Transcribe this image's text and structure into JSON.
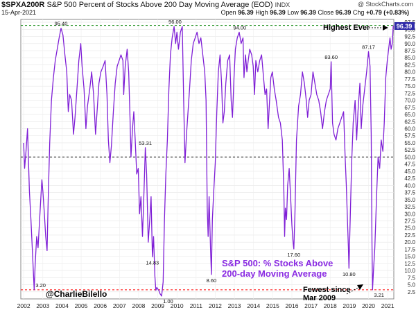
{
  "header": {
    "symbol": "$SPXA200R",
    "description": "S&P 500 Percent of Stocks Above 200 Day Moving Average (EOD)",
    "exchange": "INDX",
    "date": "15-Apr-2021",
    "brand": "@ StockCharts.com",
    "quote": {
      "open_label": "Open",
      "open": "96.39",
      "high_label": "High",
      "high": "96.39",
      "low_label": "Low",
      "low": "96.39",
      "close_label": "Close",
      "close": "96.39",
      "chg_label": "Chg",
      "chg": "+0.79 (+0.83%)"
    }
  },
  "colors": {
    "line": "#7f1fd6",
    "accent_text": "#8a2be2",
    "highest_line": "#008000",
    "lowest_line": "#ff0000",
    "mid_line": "#000000",
    "last_box": "#2e2aa8"
  },
  "chart_data": {
    "type": "line",
    "x_start_year": 2002,
    "series": [
      {
        "values": [
          [
            2002.0,
            55
          ],
          [
            2002.05,
            46
          ],
          [
            2002.12,
            52
          ],
          [
            2002.2,
            60
          ],
          [
            2002.3,
            38
          ],
          [
            2002.38,
            28
          ],
          [
            2002.46,
            16
          ],
          [
            2002.55,
            3.2
          ],
          [
            2002.6,
            12
          ],
          [
            2002.68,
            22
          ],
          [
            2002.75,
            18
          ],
          [
            2002.85,
            30
          ],
          [
            2002.95,
            42
          ],
          [
            2003.0,
            38
          ],
          [
            2003.08,
            30
          ],
          [
            2003.15,
            22
          ],
          [
            2003.22,
            17
          ],
          [
            2003.28,
            35
          ],
          [
            2003.36,
            55
          ],
          [
            2003.45,
            70
          ],
          [
            2003.55,
            78
          ],
          [
            2003.65,
            84
          ],
          [
            2003.75,
            88
          ],
          [
            2003.85,
            92
          ],
          [
            2003.95,
            95.4
          ],
          [
            2004.05,
            93
          ],
          [
            2004.15,
            86
          ],
          [
            2004.25,
            80
          ],
          [
            2004.33,
            66
          ],
          [
            2004.4,
            72
          ],
          [
            2004.5,
            70
          ],
          [
            2004.6,
            58
          ],
          [
            2004.68,
            64
          ],
          [
            2004.78,
            74
          ],
          [
            2004.88,
            84
          ],
          [
            2004.98,
            90
          ],
          [
            2005.05,
            82
          ],
          [
            2005.15,
            74
          ],
          [
            2005.25,
            60
          ],
          [
            2005.33,
            68
          ],
          [
            2005.45,
            74
          ],
          [
            2005.55,
            80
          ],
          [
            2005.65,
            72
          ],
          [
            2005.75,
            58
          ],
          [
            2005.83,
            66
          ],
          [
            2005.93,
            76
          ],
          [
            2006.03,
            80
          ],
          [
            2006.15,
            82
          ],
          [
            2006.25,
            84
          ],
          [
            2006.35,
            72
          ],
          [
            2006.42,
            56
          ],
          [
            2006.5,
            48
          ],
          [
            2006.58,
            54
          ],
          [
            2006.68,
            66
          ],
          [
            2006.78,
            76
          ],
          [
            2006.88,
            82
          ],
          [
            2006.98,
            84
          ],
          [
            2007.08,
            86
          ],
          [
            2007.18,
            84
          ],
          [
            2007.22,
            72
          ],
          [
            2007.3,
            82
          ],
          [
            2007.4,
            88
          ],
          [
            2007.48,
            80
          ],
          [
            2007.55,
            64
          ],
          [
            2007.6,
            50
          ],
          [
            2007.68,
            60
          ],
          [
            2007.75,
            66
          ],
          [
            2007.82,
            56
          ],
          [
            2007.9,
            44
          ],
          [
            2007.98,
            46
          ],
          [
            2008.05,
            30
          ],
          [
            2008.12,
            36
          ],
          [
            2008.2,
            22
          ],
          [
            2008.28,
            38
          ],
          [
            2008.35,
            53.31
          ],
          [
            2008.42,
            44
          ],
          [
            2008.5,
            20
          ],
          [
            2008.58,
            28
          ],
          [
            2008.65,
            36
          ],
          [
            2008.72,
            14.83
          ],
          [
            2008.78,
            22
          ],
          [
            2008.85,
            8
          ],
          [
            2008.9,
            3
          ],
          [
            2008.95,
            4
          ],
          [
            2009.05,
            3
          ],
          [
            2009.12,
            1.8
          ],
          [
            2009.2,
            1.0
          ],
          [
            2009.28,
            6
          ],
          [
            2009.35,
            28
          ],
          [
            2009.42,
            44
          ],
          [
            2009.5,
            56
          ],
          [
            2009.58,
            74
          ],
          [
            2009.66,
            86
          ],
          [
            2009.75,
            92
          ],
          [
            2009.85,
            96
          ],
          [
            2009.93,
            90
          ],
          [
            2010.0,
            94
          ],
          [
            2010.08,
            88
          ],
          [
            2010.18,
            94
          ],
          [
            2010.28,
            96
          ],
          [
            2010.35,
            70
          ],
          [
            2010.42,
            48
          ],
          [
            2010.5,
            58
          ],
          [
            2010.58,
            66
          ],
          [
            2010.66,
            74
          ],
          [
            2010.75,
            84
          ],
          [
            2010.85,
            90
          ],
          [
            2010.95,
            92
          ],
          [
            2011.05,
            94
          ],
          [
            2011.15,
            90
          ],
          [
            2011.25,
            92
          ],
          [
            2011.35,
            86
          ],
          [
            2011.45,
            80
          ],
          [
            2011.52,
            70
          ],
          [
            2011.58,
            32
          ],
          [
            2011.63,
            22
          ],
          [
            2011.68,
            36
          ],
          [
            2011.75,
            18
          ],
          [
            2011.8,
            8.6
          ],
          [
            2011.85,
            28
          ],
          [
            2011.92,
            38
          ],
          [
            2012.0,
            48
          ],
          [
            2012.08,
            66
          ],
          [
            2012.16,
            80
          ],
          [
            2012.25,
            86
          ],
          [
            2012.33,
            76
          ],
          [
            2012.4,
            62
          ],
          [
            2012.47,
            66
          ],
          [
            2012.55,
            76
          ],
          [
            2012.65,
            84
          ],
          [
            2012.75,
            86
          ],
          [
            2012.83,
            70
          ],
          [
            2012.9,
            64
          ],
          [
            2012.98,
            78
          ],
          [
            2013.05,
            88
          ],
          [
            2013.15,
            92
          ],
          [
            2013.25,
            94
          ],
          [
            2013.35,
            90
          ],
          [
            2013.45,
            92
          ],
          [
            2013.5,
            78
          ],
          [
            2013.58,
            86
          ],
          [
            2013.65,
            80
          ],
          [
            2013.72,
            84
          ],
          [
            2013.8,
            88
          ],
          [
            2013.9,
            86
          ],
          [
            2013.98,
            82
          ],
          [
            2014.05,
            72
          ],
          [
            2014.12,
            84
          ],
          [
            2014.22,
            80
          ],
          [
            2014.32,
            84
          ],
          [
            2014.42,
            86
          ],
          [
            2014.52,
            78
          ],
          [
            2014.6,
            72
          ],
          [
            2014.68,
            74
          ],
          [
            2014.76,
            60
          ],
          [
            2014.82,
            68
          ],
          [
            2014.9,
            78
          ],
          [
            2014.98,
            80
          ],
          [
            2015.08,
            74
          ],
          [
            2015.18,
            70
          ],
          [
            2015.3,
            64
          ],
          [
            2015.4,
            62
          ],
          [
            2015.5,
            56
          ],
          [
            2015.58,
            38
          ],
          [
            2015.62,
            22
          ],
          [
            2015.66,
            32
          ],
          [
            2015.72,
            28
          ],
          [
            2015.78,
            40
          ],
          [
            2015.86,
            46
          ],
          [
            2015.93,
            36
          ],
          [
            2016.0,
            26
          ],
          [
            2016.06,
            20
          ],
          [
            2016.1,
            17.6
          ],
          [
            2016.16,
            30
          ],
          [
            2016.24,
            56
          ],
          [
            2016.35,
            68
          ],
          [
            2016.45,
            72
          ],
          [
            2016.55,
            80
          ],
          [
            2016.65,
            76
          ],
          [
            2016.75,
            70
          ],
          [
            2016.82,
            64
          ],
          [
            2016.9,
            70
          ],
          [
            2017.0,
            72
          ],
          [
            2017.1,
            80
          ],
          [
            2017.2,
            76
          ],
          [
            2017.3,
            72
          ],
          [
            2017.4,
            70
          ],
          [
            2017.5,
            66
          ],
          [
            2017.6,
            60
          ],
          [
            2017.7,
            66
          ],
          [
            2017.8,
            70
          ],
          [
            2017.9,
            72
          ],
          [
            2018.0,
            74
          ],
          [
            2018.05,
            83.6
          ],
          [
            2018.12,
            62
          ],
          [
            2018.2,
            58
          ],
          [
            2018.3,
            56
          ],
          [
            2018.4,
            60
          ],
          [
            2018.5,
            62
          ],
          [
            2018.6,
            64
          ],
          [
            2018.7,
            66
          ],
          [
            2018.78,
            50
          ],
          [
            2018.84,
            40
          ],
          [
            2018.9,
            28
          ],
          [
            2018.95,
            18
          ],
          [
            2018.98,
            10.8
          ],
          [
            2019.05,
            30
          ],
          [
            2019.12,
            48
          ],
          [
            2019.2,
            62
          ],
          [
            2019.3,
            70
          ],
          [
            2019.38,
            56
          ],
          [
            2019.45,
            66
          ],
          [
            2019.55,
            76
          ],
          [
            2019.62,
            60
          ],
          [
            2019.7,
            68
          ],
          [
            2019.8,
            74
          ],
          [
            2019.9,
            80
          ],
          [
            2020.0,
            87.17
          ],
          [
            2020.08,
            82
          ],
          [
            2020.14,
            58
          ],
          [
            2020.18,
            20
          ],
          [
            2020.21,
            3.21
          ],
          [
            2020.26,
            10
          ],
          [
            2020.33,
            18
          ],
          [
            2020.42,
            36
          ],
          [
            2020.5,
            50
          ],
          [
            2020.58,
            46
          ],
          [
            2020.66,
            56
          ],
          [
            2020.75,
            52
          ],
          [
            2020.82,
            62
          ],
          [
            2020.9,
            78
          ],
          [
            2020.98,
            84
          ],
          [
            2021.05,
            88
          ],
          [
            2021.12,
            92
          ],
          [
            2021.18,
            88
          ],
          [
            2021.24,
            90
          ],
          [
            2021.29,
            96.39
          ]
        ]
      }
    ],
    "x_ticks": [
      "2002",
      "2003",
      "2004",
      "2005",
      "2006",
      "2007",
      "2008",
      "2009",
      "2010",
      "2011",
      "2012",
      "2013",
      "2014",
      "2015",
      "2016",
      "2017",
      "2018",
      "2019",
      "2020",
      "2021"
    ],
    "y_ticks": [
      "2.5",
      "5.0",
      "7.5",
      "10.0",
      "12.5",
      "15.0",
      "17.5",
      "20.0",
      "22.5",
      "25.0",
      "27.5",
      "30.0",
      "32.5",
      "35.0",
      "37.5",
      "40.0",
      "42.5",
      "45.0",
      "47.5",
      "50.0",
      "52.5",
      "55.0",
      "57.5",
      "60.0",
      "62.5",
      "65.0",
      "67.5",
      "70.0",
      "72.5",
      "75.0",
      "77.5",
      "80.0",
      "82.5",
      "85.0",
      "87.5",
      "90.0",
      "92.5",
      "95.0",
      "97.5"
    ],
    "ylim": [
      0,
      98.5
    ],
    "xlim": [
      2001.85,
      2021.32
    ],
    "reference_lines": [
      {
        "value": 96.39,
        "style": "dashed",
        "color_key": "highest_line"
      },
      {
        "value": 50,
        "style": "dashed",
        "color_key": "mid_line"
      },
      {
        "value": 3.21,
        "style": "dashed",
        "color_key": "lowest_line"
      }
    ],
    "point_labels": [
      {
        "x": 2003.95,
        "y": 95.4,
        "text": "95.40",
        "pos": "above"
      },
      {
        "x": 2009.9,
        "y": 96.0,
        "text": "96.00",
        "pos": "above"
      },
      {
        "x": 2013.28,
        "y": 94.0,
        "text": "94.00",
        "pos": "above"
      },
      {
        "x": 2018.05,
        "y": 83.6,
        "text": "83.60",
        "pos": "above"
      },
      {
        "x": 2020.0,
        "y": 87.17,
        "text": "87.17",
        "pos": "above"
      },
      {
        "x": 2008.35,
        "y": 53.31,
        "text": "53.31",
        "pos": "above"
      },
      {
        "x": 2002.55,
        "y": 3.2,
        "text": "3.20",
        "pos": "right_low"
      },
      {
        "x": 2008.72,
        "y": 14.83,
        "text": "14.83",
        "pos": "below"
      },
      {
        "x": 2009.2,
        "y": 1.0,
        "text": "1.00",
        "pos": "below_right"
      },
      {
        "x": 2011.8,
        "y": 8.6,
        "text": "8.60",
        "pos": "below"
      },
      {
        "x": 2016.1,
        "y": 17.6,
        "text": "17.60",
        "pos": "below"
      },
      {
        "x": 2018.98,
        "y": 10.8,
        "text": "10.80",
        "pos": "below"
      },
      {
        "x": 2020.21,
        "y": 3.21,
        "text": "3.21",
        "pos": "below_right"
      }
    ],
    "last_value": "96.39"
  },
  "annotations": {
    "highest": "Highest Ever",
    "fewest_line1": "Fewest since",
    "fewest_line2": "Mar 2009",
    "title_line1": "S&P 500: % Stocks Above",
    "title_line2": "200-day Moving Average",
    "handle": "@CharlieBilello"
  }
}
